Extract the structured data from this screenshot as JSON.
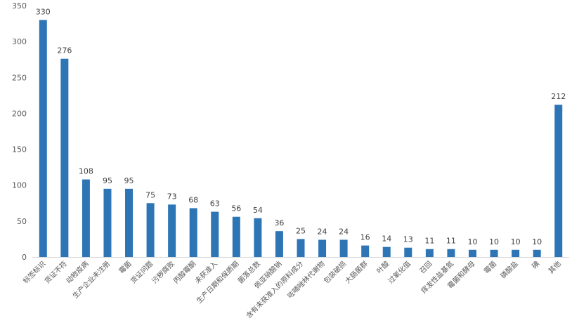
{
  "chart_data": {
    "type": "bar",
    "title": "",
    "xlabel": "",
    "ylabel": "",
    "ylim": [
      0,
      350
    ],
    "yticks": [
      0,
      50,
      100,
      150,
      200,
      250,
      300,
      350
    ],
    "grid": false,
    "legend": "none",
    "bar_color": "#2e75b6",
    "categories": [
      "标签标识",
      "货证不符",
      "动物疫病",
      "生产企业未注册",
      "霉菌",
      "货证问题",
      "污秽腐败",
      "丙酸霉酮",
      "未获准入",
      "生产日期和保质期",
      "菌落总数",
      "佩亚硝酸钠",
      "含有未获准入的原料成分",
      "咗喃唑林代谢物",
      "包装破损",
      "大肠菌群",
      "叶酸",
      "过氧化值",
      "召回",
      "挥发性盐基氮",
      "霉菌和酵母",
      "霉菌",
      "磷酸盐",
      "碘",
      "其他"
    ],
    "values": [
      330,
      276,
      108,
      95,
      95,
      75,
      73,
      68,
      63,
      56,
      54,
      36,
      25,
      24,
      24,
      16,
      14,
      13,
      11,
      11,
      10,
      10,
      10,
      10,
      212
    ]
  }
}
